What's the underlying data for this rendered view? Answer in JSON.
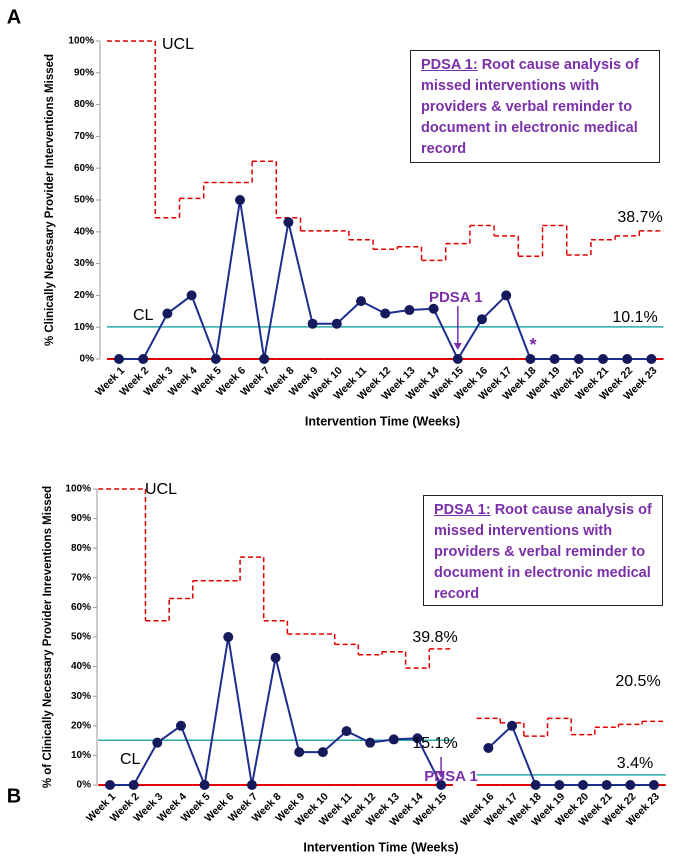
{
  "chart_data": [
    {
      "type": "control",
      "panel_label": "A",
      "x_label": "Intervention Time (Weeks)",
      "y_label": "% Clinically Necessary Provider Interventions Missed",
      "categories": [
        "Week 1",
        "Week 2",
        "Week 3",
        "Week 4",
        "Week 5",
        "Week 6",
        "Week 7",
        "Week 8",
        "Week 9",
        "Week 10",
        "Week 11",
        "Week 12",
        "Week 13",
        "Week 14",
        "Week 15",
        "Week 16",
        "Week 17",
        "Week 18",
        "Week 19",
        "Week 20",
        "Week 21",
        "Week 22",
        "Week 23"
      ],
      "ylim": [
        0,
        100
      ],
      "yticks": [
        {
          "value": 0,
          "label": "0%"
        },
        {
          "value": 10,
          "label": "10%"
        },
        {
          "value": 20,
          "label": "20%"
        },
        {
          "value": 30,
          "label": "30%"
        },
        {
          "value": 40,
          "label": "40%"
        },
        {
          "value": 50,
          "label": "50%"
        },
        {
          "value": 60,
          "label": "60%"
        },
        {
          "value": 70,
          "label": "70%"
        },
        {
          "value": 80,
          "label": "80%"
        },
        {
          "value": 90,
          "label": "90%"
        },
        {
          "value": 100,
          "label": "100%"
        }
      ],
      "series": [
        {
          "color": "#1f2d8f",
          "values": [
            0,
            0,
            14.3,
            20,
            0,
            50,
            0,
            43,
            11.1,
            11.1,
            18.2,
            14.3,
            15.4,
            15.8,
            0,
            12.5,
            20,
            0,
            0,
            0,
            0,
            0,
            0
          ]
        }
      ],
      "ucl": {
        "color": "#e00000",
        "values": [
          100,
          100,
          44.4,
          50.5,
          55.5,
          55.5,
          62.2,
          44.4,
          40.3,
          40.3,
          37.5,
          34.5,
          35.3,
          31,
          36.3,
          42,
          38.7,
          32.3,
          42,
          32.7,
          37.5,
          38.7,
          40.3
        ]
      },
      "cl": {
        "color": "#2aa8a8",
        "values": [
          10.1,
          10.1,
          10.1,
          10.1,
          10.1,
          10.1,
          10.1,
          10.1,
          10.1,
          10.1,
          10.1,
          10.1,
          10.1,
          10.1,
          10.1,
          10.1,
          10.1,
          10.1,
          10.1,
          10.1,
          10.1,
          10.1,
          10.1
        ]
      },
      "lcl": {
        "color": "#e00000",
        "values": [
          0,
          0,
          0,
          0,
          0,
          0,
          0,
          0,
          0,
          0,
          0,
          0,
          0,
          0,
          0,
          0,
          0,
          0,
          0,
          0,
          0,
          0,
          0
        ]
      },
      "ucl_text": "UCL",
      "cl_text": "CL",
      "intervention": "PDSA 1",
      "marker": "*",
      "ucl_labels": [
        "38.7%"
      ],
      "cl_labels": [
        "10.1%"
      ],
      "note": {
        "heading": "PDSA 1:",
        "text": "Root cause analysis of missed interventions with providers & verbal reminder to document in electronic medical record"
      }
    },
    {
      "type": "control",
      "panel_label": "B",
      "x_label": "Intervention Time (Weeks)",
      "y_label": "% of Clinically Necessary Provider Inreventions Missed",
      "categories": [
        "Week 1",
        "Week 2",
        "Week 3",
        "Week 4",
        "Week 5",
        "Week 6",
        "Week 7",
        "Week 8",
        "Week 9",
        "Week 10",
        "Week 11",
        "Week 12",
        "Week 13",
        "Week 14",
        "Week 15",
        null,
        "Week 16",
        "Week 17",
        "Week 18",
        "Week 19",
        "Week 20",
        "Week 21",
        "Week 22",
        "Week 23"
      ],
      "ylim": [
        0,
        100
      ],
      "yticks": [
        {
          "value": 0,
          "label": "0%"
        },
        {
          "value": 10,
          "label": "10%"
        },
        {
          "value": 20,
          "label": "20%"
        },
        {
          "value": 30,
          "label": "30%"
        },
        {
          "value": 40,
          "label": "40%"
        },
        {
          "value": 50,
          "label": "50%"
        },
        {
          "value": 60,
          "label": "60%"
        },
        {
          "value": 70,
          "label": "70%"
        },
        {
          "value": 80,
          "label": "80%"
        },
        {
          "value": 90,
          "label": "90%"
        },
        {
          "value": 100,
          "label": "100%"
        }
      ],
      "series": [
        {
          "color": "#1f2d8f",
          "values": [
            0,
            0,
            14.3,
            20,
            0,
            50,
            0,
            43,
            11.1,
            11.1,
            18.2,
            14.3,
            15.4,
            15.8,
            0,
            null,
            12.5,
            20,
            0,
            0,
            0,
            0,
            0,
            0
          ]
        }
      ],
      "ucl": {
        "color": "#e00000",
        "values": [
          100,
          100,
          55.5,
          63,
          69,
          69,
          77,
          55.5,
          51,
          51,
          47.5,
          44,
          45,
          39.5,
          46,
          null,
          22.5,
          21,
          16.5,
          22.5,
          17,
          19.5,
          20.5,
          21.5
        ]
      },
      "cl": {
        "color": "#2aa8a8",
        "values": [
          15.1,
          15.1,
          15.1,
          15.1,
          15.1,
          15.1,
          15.1,
          15.1,
          15.1,
          15.1,
          15.1,
          15.1,
          15.1,
          15.1,
          15.1,
          null,
          3.4,
          3.4,
          3.4,
          3.4,
          3.4,
          3.4,
          3.4,
          3.4
        ]
      },
      "lcl": {
        "color": "#e00000",
        "values": [
          0,
          0,
          0,
          0,
          0,
          0,
          0,
          0,
          0,
          0,
          0,
          0,
          0,
          0,
          0,
          null,
          0,
          0,
          0,
          0,
          0,
          0,
          0,
          0
        ]
      },
      "ucl_text": "UCL",
      "cl_text": "CL",
      "intervention": "PDSA 1",
      "ucl_labels": [
        "39.8%",
        "20.5%"
      ],
      "cl_labels": [
        "15.1%",
        "3.4%"
      ],
      "note": {
        "heading": "PDSA 1:",
        "text": "Root cause analysis of missed interventions with providers & verbal reminder to document in electronic medical record"
      }
    }
  ]
}
